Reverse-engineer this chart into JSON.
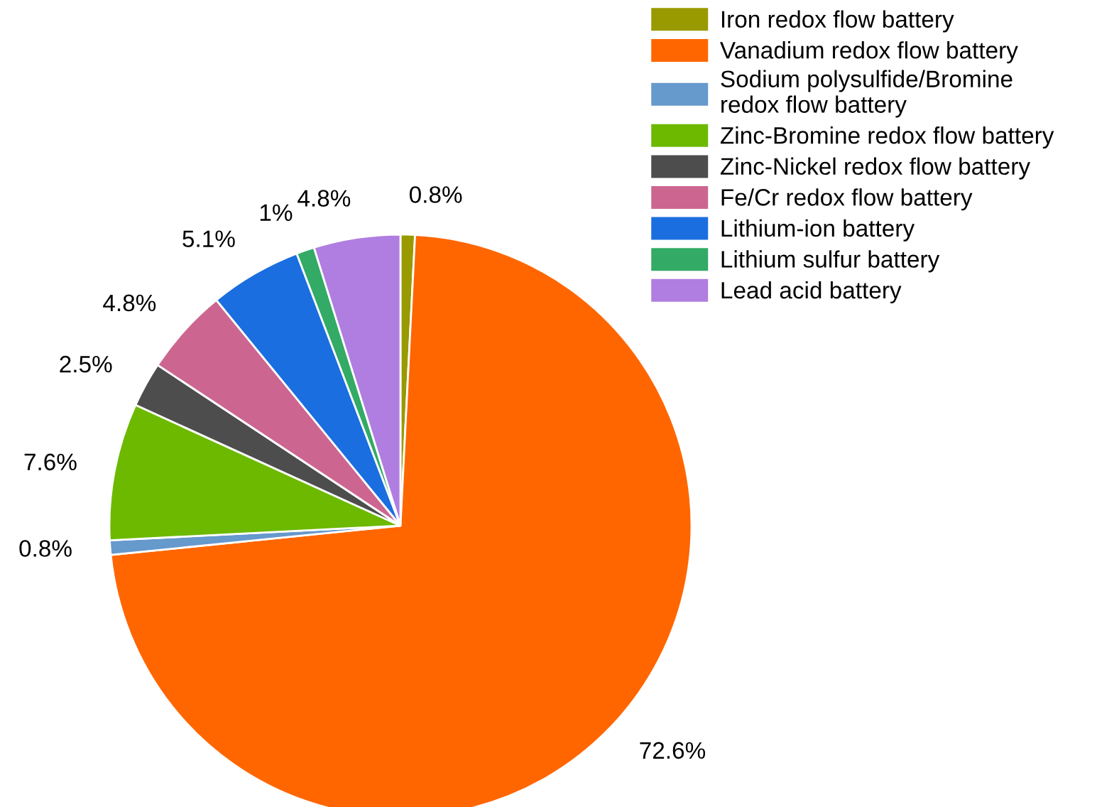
{
  "chart_data": {
    "type": "pie",
    "categories": [
      "Iron redox flow battery",
      "Vanadium redox flow battery",
      "Sodium polysulfide/Bromine\nredox flow battery",
      "Zinc-Bromine redox flow battery",
      "Zinc-Nickel redox flow battery",
      "Fe/Cr redox flow battery",
      "Lithium-ion battery",
      "Lithium sulfur battery",
      "Lead acid battery"
    ],
    "values": [
      0.8,
      72.6,
      0.8,
      7.6,
      2.5,
      4.8,
      5.1,
      1,
      4.8
    ],
    "colors": [
      "#999900",
      "#ff6600",
      "#6699cc",
      "#6cb900",
      "#4d4d4d",
      "#cc6690",
      "#1a6ee0",
      "#33aa66",
      "#b07ee0"
    ],
    "value_labels": [
      "0.8%",
      "72.6%",
      "0.8%",
      "7.6%",
      "2.5%",
      "4.8%",
      "5.1%",
      "1%",
      "4.8%"
    ],
    "legend": "top right"
  }
}
